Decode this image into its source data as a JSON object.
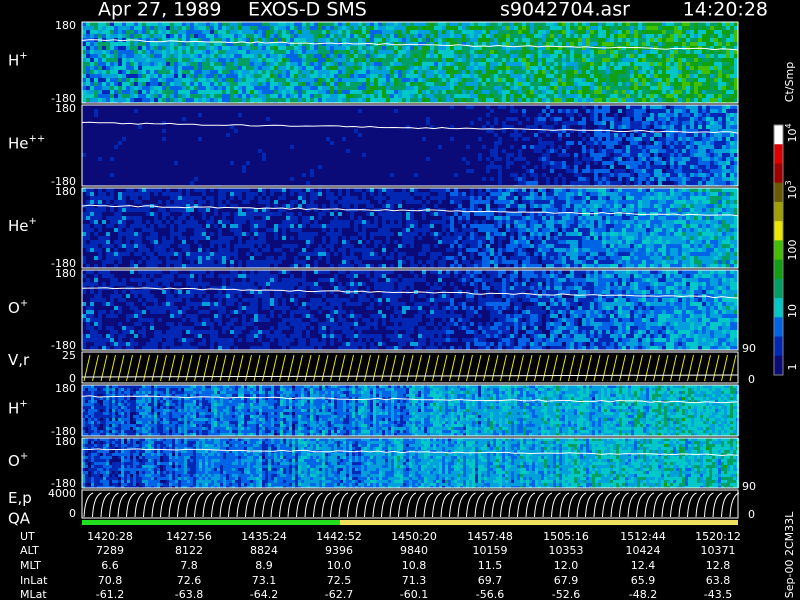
{
  "header": {
    "date": "Apr 27, 1989",
    "instrument": "EXOS-D SMS",
    "file": "s9042704.asr",
    "time": "14:20:28"
  },
  "panels": [
    {
      "label": {
        "base": "H",
        "sup": "+"
      },
      "top": "180",
      "bottom": "-180"
    },
    {
      "label": {
        "base": "He",
        "sup": "++"
      },
      "top": "180",
      "bottom": "-180"
    },
    {
      "label": {
        "base": "He",
        "sup": "+"
      },
      "top": "180",
      "bottom": "-180"
    },
    {
      "label": {
        "base": "O",
        "sup": "+"
      },
      "top": "180",
      "bottom": "-180"
    },
    {
      "label": {
        "base": "V,r"
      },
      "top": "25",
      "bottom": "0",
      "right_top": "90",
      "right_bottom": "0"
    },
    {
      "label": {
        "base": "H",
        "sup": "+"
      },
      "top": "180",
      "bottom": "-180"
    },
    {
      "label": {
        "base": "O",
        "sup": "+"
      },
      "top": "180",
      "bottom": "-180"
    },
    {
      "label": {
        "base": "E,p"
      },
      "top": "4000",
      "bottom": "0",
      "right_top": "90",
      "right_bottom": "0"
    }
  ],
  "qa_label": "QA",
  "colorbar": {
    "unit": "Ct/Smp",
    "ticks": [
      {
        "base": "1"
      },
      {
        "base": "10"
      },
      {
        "base": "100"
      },
      {
        "base": "10",
        "sup": "3"
      },
      {
        "base": "10",
        "sup": "4"
      }
    ]
  },
  "table": {
    "rows": [
      {
        "label": "UT",
        "values": [
          "1420:28",
          "1427:56",
          "1435:24",
          "1442:52",
          "1450:20",
          "1457:48",
          "1505:16",
          "1512:44",
          "1520:12"
        ]
      },
      {
        "label": "ALT",
        "values": [
          "7289",
          "8122",
          "8824",
          "9396",
          "9840",
          "10159",
          "10353",
          "10424",
          "10371"
        ]
      },
      {
        "label": "MLT",
        "values": [
          "6.6",
          "7.8",
          "8.9",
          "10.0",
          "10.8",
          "11.5",
          "12.0",
          "12.4",
          "12.8"
        ]
      },
      {
        "label": "InLat",
        "values": [
          "70.8",
          "72.6",
          "73.1",
          "72.5",
          "71.3",
          "69.7",
          "67.9",
          "65.9",
          "63.8"
        ]
      },
      {
        "label": "MLat",
        "values": [
          "-61.2",
          "-63.8",
          "-64.2",
          "-62.7",
          "-60.1",
          "-56.6",
          "-52.6",
          "-48.2",
          "-43.5"
        ]
      }
    ]
  },
  "footer": "Sep-00 2CM33L"
}
